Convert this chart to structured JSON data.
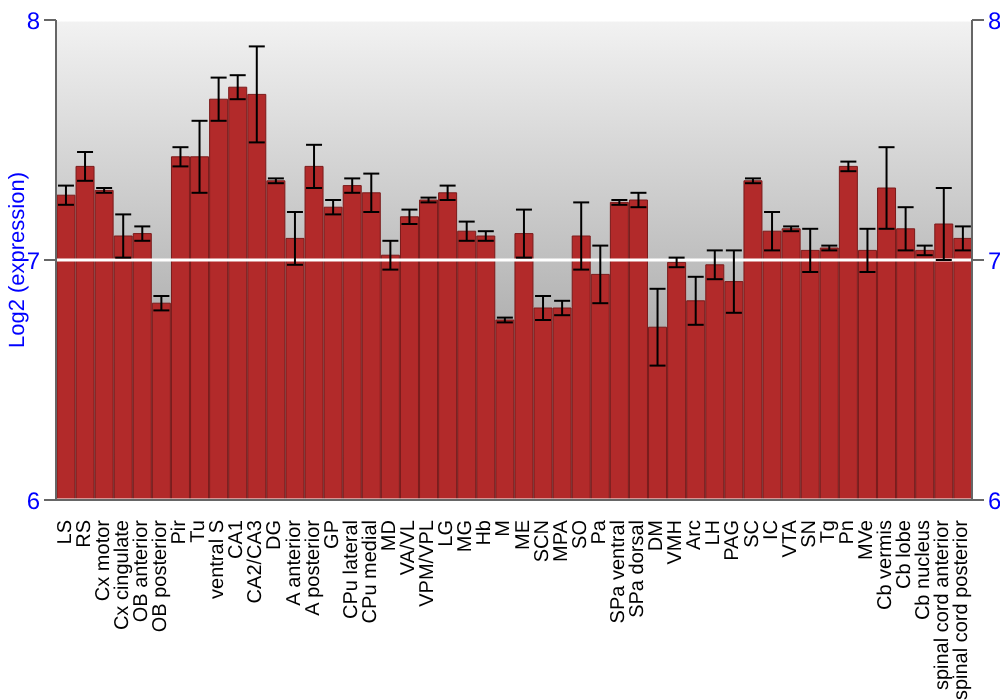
{
  "chart_data": {
    "type": "bar",
    "ylabel": "Log2 (expression)",
    "categories": [
      "LS",
      "RS",
      "Cx motor",
      "Cx cingulate",
      "OB anterior",
      "OB posterior",
      "Pir",
      "Tu",
      "ventral S",
      "CA1",
      "CA2/CA3",
      "DG",
      "A anterior",
      "A posterior",
      "GP",
      "CPu lateral",
      "CPu medial",
      "MD",
      "VA/VL",
      "VPM/VPL",
      "LG",
      "MG",
      "Hb",
      "M",
      "ME",
      "SCN",
      "MPA",
      "SO",
      "Pa",
      "SPa ventral",
      "SPa dorsal",
      "DM",
      "VMH",
      "Arc",
      "LH",
      "PAG",
      "SC",
      "IC",
      "VTA",
      "SN",
      "Tg",
      "Pn",
      "MVe",
      "Cb vermis",
      "Cb lobe",
      "Cb nucleus",
      "spinal cord anterior",
      "spinal cord posterior"
    ],
    "values": [
      7.27,
      7.39,
      7.29,
      7.1,
      7.11,
      6.82,
      7.43,
      7.43,
      7.67,
      7.72,
      7.69,
      7.33,
      7.09,
      7.39,
      7.22,
      7.31,
      7.28,
      7.02,
      7.18,
      7.25,
      7.28,
      7.12,
      7.1,
      6.75,
      7.11,
      6.8,
      6.8,
      7.1,
      6.94,
      7.24,
      7.25,
      6.72,
      6.99,
      6.83,
      6.98,
      6.91,
      7.33,
      7.12,
      7.13,
      7.04,
      7.05,
      7.39,
      7.04,
      7.3,
      7.13,
      7.04,
      7.15,
      7.09
    ],
    "errors": [
      0.04,
      0.06,
      0.01,
      0.09,
      0.03,
      0.03,
      0.04,
      0.15,
      0.09,
      0.05,
      0.2,
      0.01,
      0.11,
      0.09,
      0.03,
      0.03,
      0.08,
      0.06,
      0.03,
      0.01,
      0.03,
      0.04,
      0.02,
      0.01,
      0.1,
      0.05,
      0.03,
      0.14,
      0.12,
      0.01,
      0.03,
      0.16,
      0.02,
      0.1,
      0.06,
      0.13,
      0.01,
      0.08,
      0.01,
      0.09,
      0.01,
      0.02,
      0.09,
      0.17,
      0.09,
      0.02,
      0.15,
      0.05
    ],
    "color": "#b22a2a",
    "ylim": [
      6,
      8
    ],
    "yticks": [
      6,
      7,
      8
    ],
    "y2lim": [
      6,
      8
    ],
    "y2ticks": [
      6,
      7,
      8
    ],
    "grid": "y"
  }
}
